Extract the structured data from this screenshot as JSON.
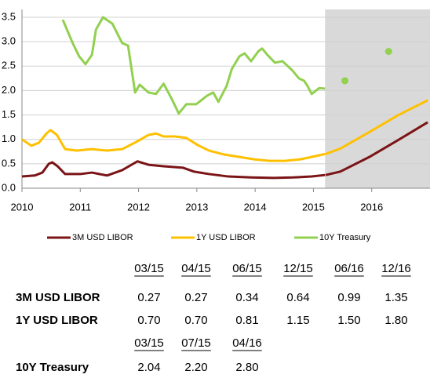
{
  "chart_data": {
    "type": "line",
    "xlim": [
      2010,
      2017
    ],
    "xticks": [
      2010,
      2011,
      2012,
      2013,
      2014,
      2015,
      2016
    ],
    "ylim": [
      0,
      3.5
    ],
    "yticks": [
      {
        "value": 0,
        "label": "0.0"
      },
      0.5,
      {
        "value": 1,
        "label": "1.0"
      },
      1.5,
      {
        "value": 2,
        "label": "2.0"
      },
      2.5,
      {
        "value": 3,
        "label": "3.0"
      },
      3.5
    ],
    "grid": true,
    "shaded_region": [
      2015.2,
      2017
    ],
    "legend": "bottom",
    "series": [
      {
        "name": "3M USD LIBOR",
        "color": "#7b1416",
        "x": [
          2010,
          2010.22,
          2010.35,
          2010.46,
          2010.52,
          2010.61,
          2010.74,
          2011,
          2011.2,
          2011.46,
          2011.72,
          2011.98,
          2012.17,
          2012.43,
          2012.76,
          2012.95,
          2013.21,
          2013.54,
          2013.93,
          2014.32,
          2014.64,
          2014.97,
          2015.2
        ],
        "values": [
          0.24,
          0.26,
          0.32,
          0.5,
          0.53,
          0.45,
          0.29,
          0.29,
          0.32,
          0.26,
          0.37,
          0.55,
          0.48,
          0.45,
          0.42,
          0.34,
          0.29,
          0.24,
          0.22,
          0.21,
          0.22,
          0.24,
          0.27
        ],
        "forecast_x": [
          2015.21,
          2015.46,
          2015.96,
          2016.46,
          2016.96
        ],
        "forecast_values": [
          0.27,
          0.34,
          0.64,
          0.99,
          1.35
        ]
      },
      {
        "name": "1Y USD LIBOR",
        "color": "#ffc000",
        "x": [
          2010,
          2010.16,
          2010.29,
          2010.42,
          2010.49,
          2010.6,
          2010.74,
          2010.94,
          2011.2,
          2011.46,
          2011.72,
          2011.98,
          2012.17,
          2012.3,
          2012.43,
          2012.63,
          2012.82,
          2013.02,
          2013.21,
          2013.47,
          2013.73,
          2013.99,
          2014.25,
          2014.51,
          2014.77,
          2014.97,
          2015.2
        ],
        "values": [
          1.0,
          0.87,
          0.93,
          1.12,
          1.19,
          1.09,
          0.8,
          0.77,
          0.8,
          0.77,
          0.8,
          0.96,
          1.09,
          1.12,
          1.06,
          1.06,
          1.03,
          0.88,
          0.77,
          0.69,
          0.64,
          0.59,
          0.56,
          0.56,
          0.59,
          0.64,
          0.7
        ],
        "forecast_x": [
          2015.21,
          2015.46,
          2015.96,
          2016.46,
          2016.96
        ],
        "forecast_values": [
          0.7,
          0.81,
          1.15,
          1.5,
          1.8
        ]
      },
      {
        "name": "10Y Treasury",
        "color": "#92d050",
        "x": [
          2010.7,
          2010.87,
          2010.98,
          2011.09,
          2011.2,
          2011.27,
          2011.39,
          2011.55,
          2011.72,
          2011.82,
          2011.94,
          2012.02,
          2012.17,
          2012.3,
          2012.43,
          2012.56,
          2012.69,
          2012.82,
          2012.99,
          2013.17,
          2013.28,
          2013.37,
          2013.51,
          2013.6,
          2013.73,
          2013.82,
          2013.93,
          2014.06,
          2014.12,
          2014.21,
          2014.34,
          2014.47,
          2014.64,
          2014.75,
          2014.84,
          2014.9,
          2014.97,
          2015.1,
          2015.2
        ],
        "values": [
          3.45,
          2.97,
          2.7,
          2.54,
          2.73,
          3.25,
          3.5,
          3.37,
          2.97,
          2.92,
          1.96,
          2.12,
          1.96,
          1.93,
          2.14,
          1.85,
          1.53,
          1.72,
          1.72,
          1.89,
          1.96,
          1.77,
          2.09,
          2.44,
          2.7,
          2.76,
          2.6,
          2.81,
          2.86,
          2.73,
          2.57,
          2.6,
          2.41,
          2.25,
          2.2,
          2.09,
          1.93,
          2.05,
          2.04
        ],
        "forecast_x": [
          2015.54,
          2016.29
        ],
        "forecast_values": [
          2.2,
          2.8
        ]
      }
    ]
  },
  "table": {
    "header1": [
      "03/15",
      "04/15",
      "06/15",
      "12/15",
      "06/16",
      "12/16"
    ],
    "rows1": [
      [
        "3M USD LIBOR",
        "0.27",
        "0.27",
        "0.34",
        "0.64",
        "0.99",
        "1.35"
      ],
      [
        "1Y USD LIBOR",
        "0.70",
        "0.70",
        "0.81",
        "1.15",
        "1.50",
        "1.80"
      ]
    ],
    "header2": [
      "03/15",
      "07/15",
      "04/16"
    ],
    "rows2": [
      [
        "10Y Treasury",
        "2.04",
        "2.20",
        "2.80"
      ]
    ]
  }
}
